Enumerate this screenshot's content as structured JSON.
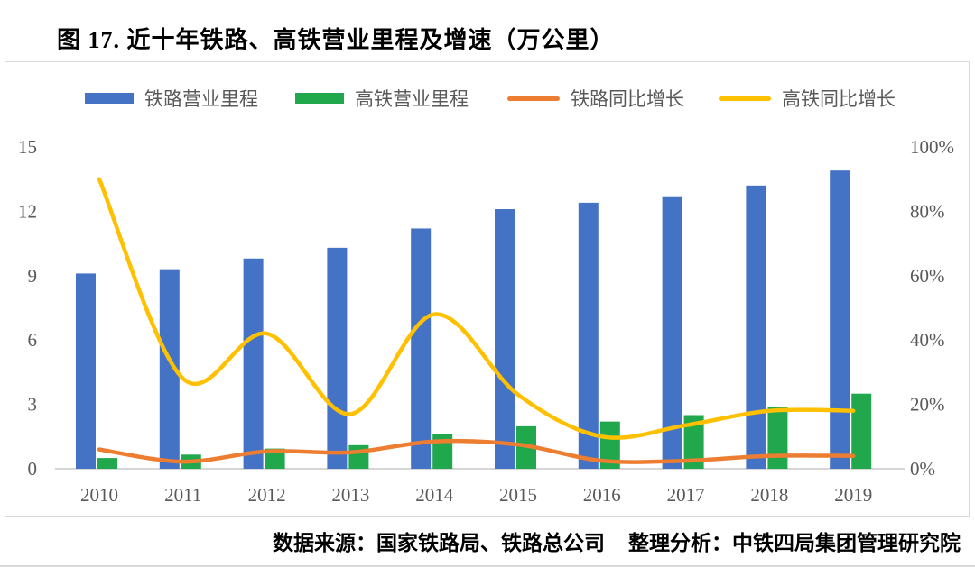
{
  "title": "图 17. 近十年铁路、高铁营业里程及增速（万公里）",
  "footer": {
    "source": "数据来源：国家铁路局、铁路总公司",
    "analysis": "整理分析：中铁四局集团管理研究院"
  },
  "colors": {
    "railway_bar": "#4472C4",
    "hsr_bar": "#21A84C",
    "railway_line": "#ED7D31",
    "hsr_line": "#FFC000",
    "axis_text": "#595959",
    "axis_line": "#D6D6D6",
    "panel_border": "#D9D9D9"
  },
  "legend": {
    "items": [
      {
        "label": "铁路营业里程",
        "type": "bar",
        "color": "#4472C4"
      },
      {
        "label": "高铁营业里程",
        "type": "bar",
        "color": "#21A84C"
      },
      {
        "label": "铁路同比增长",
        "type": "line",
        "color": "#ED7D31"
      },
      {
        "label": "高铁同比增长",
        "type": "line",
        "color": "#FFC000"
      }
    ]
  },
  "chart_data": {
    "type": "bar",
    "subtype": "combo-bar-line-dual-axis",
    "title": "图 17. 近十年铁路、高铁营业里程及增速（万公里）",
    "categories": [
      "2010",
      "2011",
      "2012",
      "2013",
      "2014",
      "2015",
      "2016",
      "2017",
      "2018",
      "2019"
    ],
    "series": [
      {
        "name": "铁路营业里程",
        "type": "bar",
        "axis": "left",
        "color": "#4472C4",
        "unit": "万公里",
        "values": [
          9.1,
          9.3,
          9.8,
          10.3,
          11.2,
          12.1,
          12.4,
          12.7,
          13.2,
          13.9
        ]
      },
      {
        "name": "高铁营业里程",
        "type": "bar",
        "axis": "left",
        "color": "#21A84C",
        "unit": "万公里",
        "values": [
          0.5,
          0.66,
          0.94,
          1.1,
          1.6,
          1.98,
          2.2,
          2.5,
          2.9,
          3.5
        ]
      },
      {
        "name": "铁路同比增长",
        "type": "line",
        "axis": "right",
        "color": "#ED7D31",
        "unit": "%",
        "values": [
          6,
          2.2,
          5.4,
          5.1,
          8.5,
          7.5,
          2.5,
          2.5,
          4,
          4
        ]
      },
      {
        "name": "高铁同比增长",
        "type": "line",
        "axis": "right",
        "color": "#FFC000",
        "unit": "%",
        "values": [
          90,
          28,
          42,
          17,
          48,
          23,
          10,
          13.5,
          18,
          18
        ]
      }
    ],
    "left_axis": {
      "min": 0,
      "max": 15,
      "ticks": [
        "0",
        "3",
        "6",
        "9",
        "12",
        "15"
      ]
    },
    "right_axis": {
      "min": 0,
      "max": 100,
      "ticks": [
        "0%",
        "20%",
        "40%",
        "60%",
        "80%",
        "100%"
      ]
    },
    "grid": false,
    "legend_position": "top",
    "xlabel": "",
    "ylabel_left": "万公里",
    "ylabel_right": "%"
  }
}
